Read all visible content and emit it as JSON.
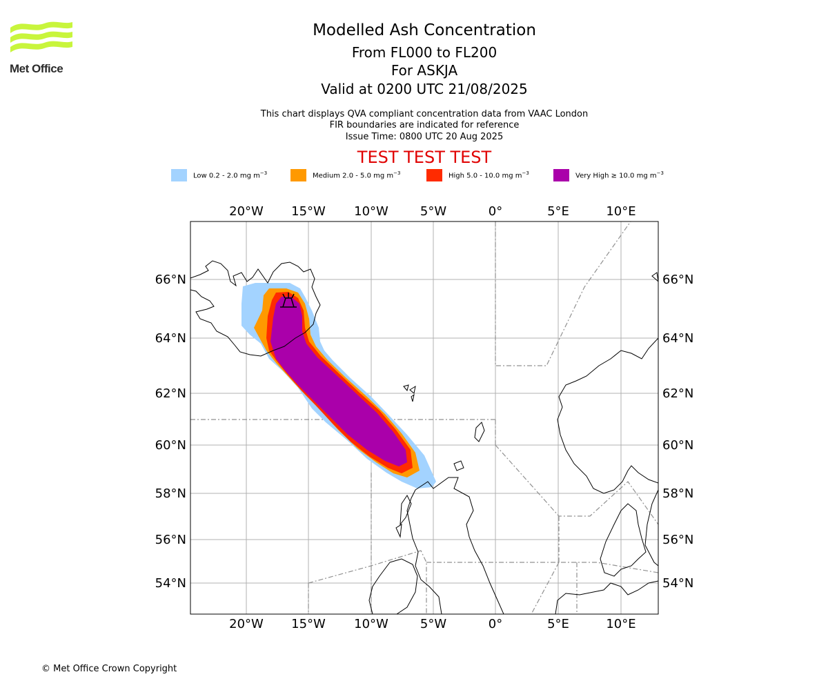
{
  "header": {
    "logo_text": "Met Office",
    "title": "Modelled Ash Concentration",
    "level_range": "From FL000 to FL200",
    "volcano": "For ASKJA",
    "valid_time": "Valid at 0200 UTC 21/08/2025",
    "description_line1": "This chart displays QVA compliant concentration data from VAAC London",
    "description_line2": "FIR boundaries are indicated for reference",
    "issue_time": "Issue Time: 0800 UTC 20 Aug 2025",
    "test_banner": "TEST TEST TEST"
  },
  "legend": [
    {
      "label": "Low 0.2 - 2.0 mg m",
      "exp": "−3",
      "color": "#a3d3ff"
    },
    {
      "label": "Medium 2.0 - 5.0 mg m",
      "exp": "−3",
      "color": "#ff9900"
    },
    {
      "label": "High 5.0 - 10.0 mg m",
      "exp": "−3",
      "color": "#ff2b00"
    },
    {
      "label": "Very High  ≥  10.0 mg m",
      "exp": "−3",
      "color": "#aa00aa"
    }
  ],
  "map": {
    "lon_ticks": [
      "20°W",
      "15°W",
      "10°W",
      "5°W",
      "0°",
      "5°E",
      "10°E"
    ],
    "lat_ticks": [
      "66°N",
      "64°N",
      "62°N",
      "60°N",
      "58°N",
      "56°N",
      "54°N"
    ],
    "extent": {
      "lon": [
        -24.5,
        13
      ],
      "lat": [
        53,
        68
      ]
    },
    "volcano_icon": "volcano-icon",
    "colors": {
      "grid": "#b0b0b0",
      "fir": "#909090",
      "coast": "#000000"
    }
  },
  "footer": {
    "copyright": "© Met Office Crown Copyright"
  }
}
